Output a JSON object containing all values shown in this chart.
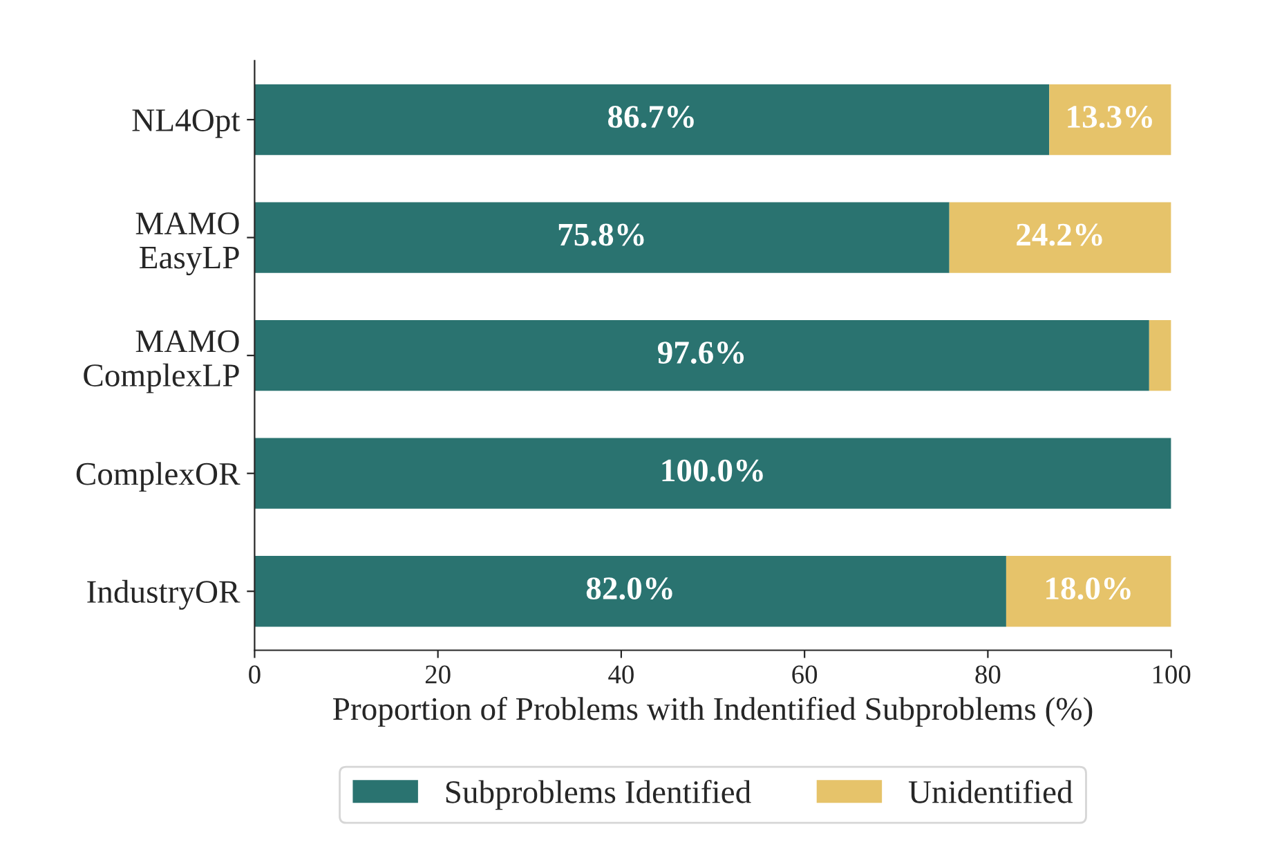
{
  "chart_data": {
    "type": "bar",
    "orientation": "horizontal",
    "stacked": true,
    "categories": [
      "NL4Opt",
      "MAMO\nEasyLP",
      "MAMO\nComplexLP",
      "ComplexOR",
      "IndustryOR"
    ],
    "series": [
      {
        "name": "Subproblems Identified",
        "color": "#2a7370",
        "values": [
          86.7,
          75.8,
          97.6,
          100.0,
          82.0
        ],
        "value_labels": [
          "86.7%",
          "75.8%",
          "97.6%",
          "100.0%",
          "82.0%"
        ]
      },
      {
        "name": "Unidentified",
        "color": "#e6c36a",
        "values": [
          13.3,
          24.2,
          2.4,
          0.0,
          18.0
        ],
        "value_labels": [
          "13.3%",
          "24.2%",
          null,
          null,
          "18.0%"
        ]
      }
    ],
    "xlabel": "Proportion of Problems with Indentified Subproblems (%)",
    "xlim": [
      0,
      100
    ],
    "xticks": [
      0,
      20,
      40,
      60,
      80,
      100
    ],
    "legend": "bottom",
    "grid": false
  }
}
